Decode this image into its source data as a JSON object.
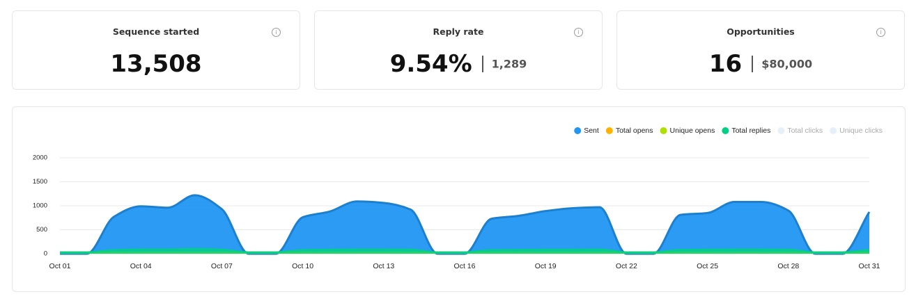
{
  "stats": [
    {
      "title": "Sequence started",
      "value": "13,508"
    },
    {
      "title": "Reply rate",
      "value": "9.54%",
      "secondary": "1,289"
    },
    {
      "title": "Opportunities",
      "value": "16",
      "secondary": "$80,000"
    }
  ],
  "chart_data": {
    "type": "area",
    "categories": [
      "Oct 01",
      null,
      null,
      "Oct 04",
      null,
      null,
      "Oct 07",
      null,
      null,
      "Oct 10",
      null,
      null,
      "Oct 13",
      null,
      null,
      "Oct 16",
      null,
      null,
      "Oct 19",
      null,
      null,
      "Oct 22",
      null,
      null,
      "Oct 25",
      null,
      null,
      "Oct 28",
      null,
      null,
      "Oct 31"
    ],
    "ylim": [
      0,
      2000
    ],
    "yticks": [
      0,
      500,
      1000,
      1500,
      2000
    ],
    "grid": true,
    "legend": "top-right",
    "series": [
      {
        "name": "Sent",
        "color": "#2196f3",
        "values": [
          0,
          0,
          770,
          990,
          960,
          1220,
          930,
          0,
          0,
          760,
          880,
          1090,
          1060,
          920,
          0,
          0,
          730,
          790,
          890,
          950,
          970,
          0,
          0,
          810,
          850,
          1080,
          1080,
          900,
          0,
          0,
          870
        ]
      },
      {
        "name": "Total opens",
        "color": "#ffb300",
        "values": [
          30,
          30,
          30,
          30,
          30,
          30,
          30,
          30,
          30,
          30,
          30,
          30,
          30,
          30,
          30,
          30,
          30,
          30,
          30,
          30,
          30,
          30,
          30,
          30,
          30,
          30,
          30,
          30,
          30,
          30,
          30
        ]
      },
      {
        "name": "Unique opens",
        "color": "#aee000",
        "values": [
          25,
          25,
          25,
          25,
          25,
          25,
          25,
          25,
          25,
          25,
          25,
          25,
          25,
          25,
          25,
          25,
          25,
          25,
          25,
          25,
          25,
          25,
          25,
          25,
          25,
          25,
          25,
          25,
          25,
          25,
          25
        ]
      },
      {
        "name": "Total replies",
        "color": "#00d084",
        "values": [
          35,
          35,
          80,
          95,
          95,
          105,
          90,
          35,
          35,
          80,
          90,
          95,
          95,
          90,
          35,
          35,
          80,
          85,
          90,
          90,
          95,
          35,
          35,
          85,
          90,
          95,
          95,
          90,
          35,
          35,
          85
        ]
      }
    ],
    "hidden_series": [
      {
        "name": "Total clicks",
        "color": "#e6f0fa"
      },
      {
        "name": "Unique clicks",
        "color": "#e6f0fa"
      }
    ]
  }
}
